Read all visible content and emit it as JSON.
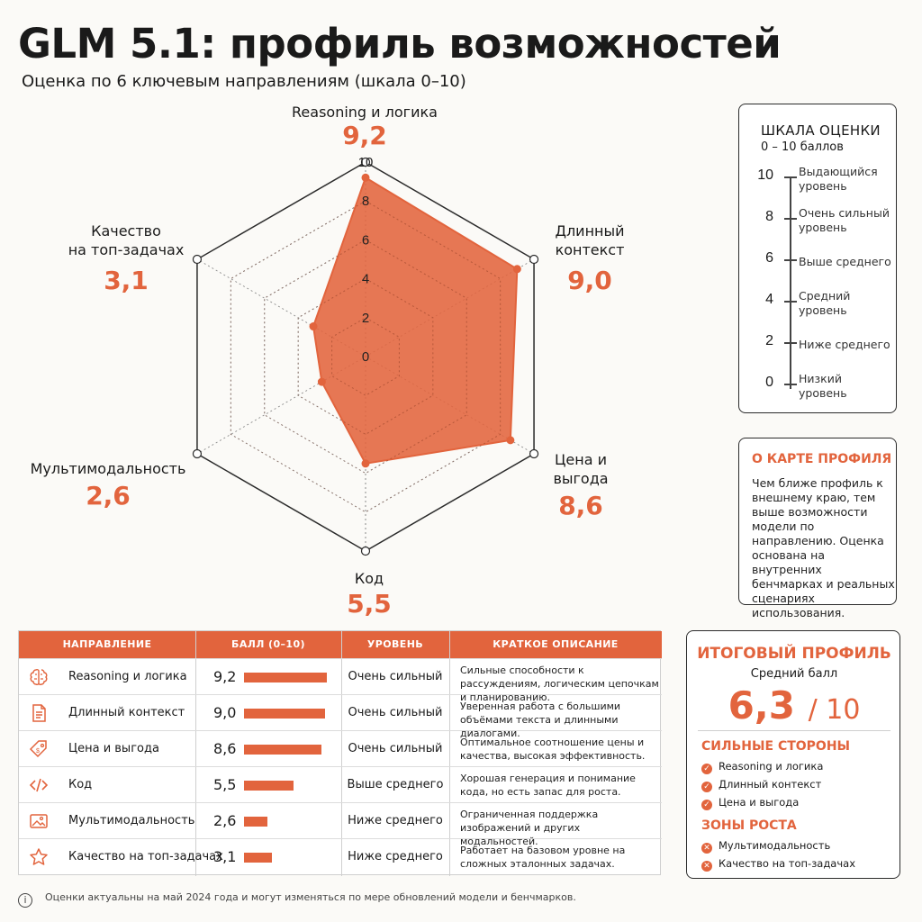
{
  "title": "GLM 5.1: профиль возможностей",
  "subtitle": "Оценка по 6 ключевым направлениям (шкала 0–10)",
  "chart_data": {
    "type": "radar",
    "axes": [
      "Reasoning и логика",
      "Длинный контекст",
      "Цена и выгода",
      "Код",
      "Мультимодальность",
      "Качество на топ-задачах"
    ],
    "axis_labels_display": [
      "Reasoning и логика",
      "Длинный\nконтекст",
      "Цена и\nвыгода",
      "Код",
      "Мультимодальность",
      "Качество\nна топ-задачах"
    ],
    "values": [
      9.2,
      9.0,
      8.6,
      5.5,
      2.6,
      3.1
    ],
    "value_labels": [
      "9,2",
      "9,0",
      "8,6",
      "5,5",
      "2,6",
      "3,1"
    ],
    "ticks": [
      "0",
      "2",
      "4",
      "6",
      "8",
      "10"
    ],
    "range": [
      0,
      10
    ],
    "color": "#e2643d"
  },
  "scale": {
    "title": "ШКАЛА ОЦЕНКИ",
    "subtitle": "0 – 10 баллов",
    "levels": [
      {
        "value": "10",
        "label": "Выдающийся\nуровень"
      },
      {
        "value": "8",
        "label": "Очень сильный\nуровень"
      },
      {
        "value": "6",
        "label": "Выше среднего"
      },
      {
        "value": "4",
        "label": "Средний\nуровень"
      },
      {
        "value": "2",
        "label": "Ниже среднего"
      },
      {
        "value": "0",
        "label": "Низкий\nуровень"
      }
    ]
  },
  "about": {
    "title": "О КАРТЕ ПРОФИЛЯ",
    "text": "Чем ближе профиль к внешнему краю, тем выше возможности модели по направлению. Оценка основана на внутренних бенчмарках и реальных сценариях использования."
  },
  "table": {
    "headers": [
      "НАПРАВЛЕНИЕ",
      "БАЛЛ (0–10)",
      "УРОВЕНЬ",
      "КРАТКОЕ ОПИСАНИЕ"
    ],
    "rows": [
      {
        "icon": "brain-icon",
        "name": "Reasoning и логика",
        "score": "9,2",
        "value": 9.2,
        "level": "Очень сильный",
        "desc": "Сильные способности к рассуждениям, логическим цепочкам и планированию."
      },
      {
        "icon": "document-icon",
        "name": "Длинный контекст",
        "score": "9,0",
        "value": 9.0,
        "level": "Очень сильный",
        "desc": "Уверенная работа с большими объёмами текста и длинными диалогами."
      },
      {
        "icon": "price-tag-icon",
        "name": "Цена и выгода",
        "score": "8,6",
        "value": 8.6,
        "level": "Очень сильный",
        "desc": "Оптимальное соотношение цены и качества, высокая эффективность."
      },
      {
        "icon": "code-icon",
        "name": "Код",
        "score": "5,5",
        "value": 5.5,
        "level": "Выше среднего",
        "desc": "Хорошая генерация и понимание кода, но есть запас для роста."
      },
      {
        "icon": "image-icon",
        "name": "Мультимодальность",
        "score": "2,6",
        "value": 2.6,
        "level": "Ниже среднего",
        "desc": "Ограниченная поддержка изображений и других модальностей."
      },
      {
        "icon": "star-icon",
        "name": "Качество на топ-задачах",
        "score": "3,1",
        "value": 3.1,
        "level": "Ниже среднего",
        "desc": "Работает на базовом уровне на сложных эталонных задачах."
      }
    ]
  },
  "summary": {
    "title": "ИТОГОВЫЙ ПРОФИЛЬ",
    "subtitle": "Средний балл",
    "score": "6,3",
    "of": "/ 10",
    "strengths_title": "СИЛЬНЫЕ СТОРОНЫ",
    "strengths": [
      "Reasoning и логика",
      "Длинный контекст",
      "Цена и выгода"
    ],
    "growth_title": "ЗОНЫ РОСТА",
    "growth": [
      "Мультимодальность",
      "Качество на топ-задачах"
    ]
  },
  "footnote": "Оценки актуальны на май 2024 года и могут изменяться по мере обновлений модели и бенчмарков."
}
